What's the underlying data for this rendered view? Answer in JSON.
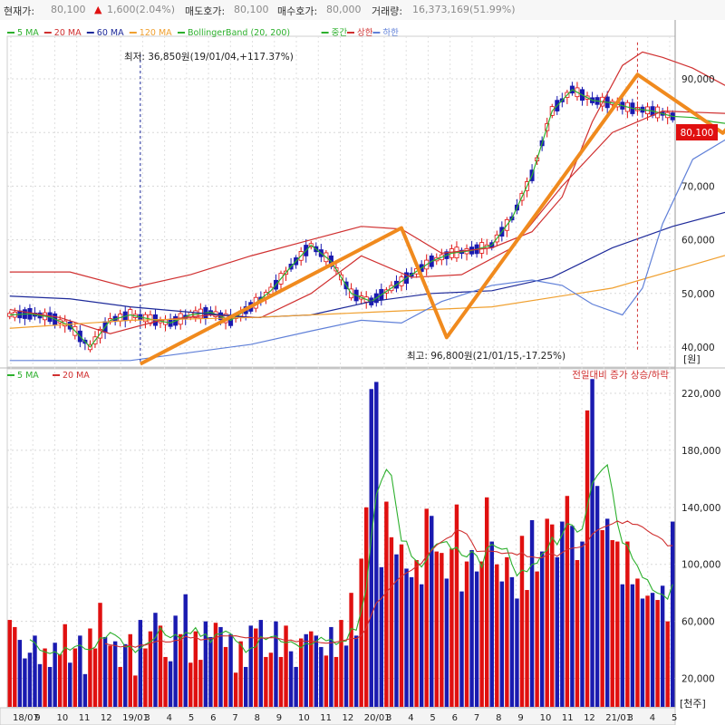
{
  "header": {
    "price_label": "현재가:",
    "price_value": "80,100",
    "change_arrow": "▲",
    "change_value": "1,600(2.04%)",
    "ask_label": "매도호가:",
    "ask_value": "80,100",
    "bid_label": "매수호가:",
    "bid_value": "80,000",
    "volume_label": "거래량:",
    "volume_value": "16,373,169(51.99%)"
  },
  "legend_top": [
    {
      "label": "5 MA",
      "color": "#2db02d"
    },
    {
      "label": "20 MA",
      "color": "#d03030"
    },
    {
      "label": "60 MA",
      "color": "#1e2a9a"
    },
    {
      "label": "120 MA",
      "color": "#f0a030"
    },
    {
      "label": "BollingerBand (20, 200)",
      "color": "#2db02d"
    },
    {
      "label": "중간",
      "color": "#2db02d"
    },
    {
      "label": "상한",
      "color": "#d03030"
    },
    {
      "label": "하한",
      "color": "#6080d8"
    }
  ],
  "legend_bottom": [
    {
      "label": "5 MA",
      "color": "#2db02d"
    },
    {
      "label": "20 MA",
      "color": "#d03030"
    }
  ],
  "annotations": {
    "low": "최저: 36,850원(19/01/04,+117.37%)",
    "high": "최고: 96,800원(21/01/15,-17.25%)",
    "volume_note": "전일대비 증가 상승/하락",
    "price_unit": "[원]",
    "volume_unit": "[천주]",
    "current_price_tag": "80,100"
  },
  "colors": {
    "up": "#e01010",
    "down": "#1a1ab0",
    "current_tag": "#e01010",
    "trendline": "#f08a1e"
  },
  "chart_data": [
    {
      "type": "line",
      "title": "",
      "ylabel": "[원]",
      "ylim": [
        38000,
        100000
      ],
      "y_ticks": [
        40000,
        50000,
        60000,
        70000,
        80000,
        90000
      ],
      "y_tick_labels": [
        "40,000",
        "50,000",
        "60,000",
        "70,000",
        "80,000",
        "90,000"
      ],
      "x_tick_labels": [
        "18/07",
        "9",
        "10",
        "11",
        "12",
        "19/01",
        "3",
        "4",
        "5",
        "6",
        "7",
        "8",
        "9",
        "10",
        "11",
        "12",
        "20/01",
        "3",
        "4",
        "5",
        "6",
        "7",
        "8",
        "9",
        "10",
        "11",
        "12",
        "21/01",
        "3",
        "4",
        "5"
      ],
      "current_price": 80100,
      "series": [
        {
          "name": "5 MA",
          "color": "#2db02d",
          "x": [
            0,
            4,
            8,
            12,
            16,
            20,
            24,
            28,
            32,
            36,
            40,
            44,
            48,
            52,
            56,
            60,
            64,
            68,
            72,
            76,
            80,
            84,
            88,
            92,
            96,
            100,
            104,
            108,
            112,
            116,
            120,
            124,
            128,
            132,
            136,
            140,
            144
          ],
          "y": [
            46000,
            46200,
            45600,
            44000,
            40000,
            45000,
            46000,
            45200,
            44500,
            46000,
            46500,
            45000,
            47500,
            50500,
            55000,
            59000,
            56000,
            50000,
            48500,
            51000,
            53500,
            56000,
            57500,
            58000,
            59000,
            64000,
            72000,
            84000,
            88000,
            86000,
            85500,
            84500,
            84000,
            83000,
            82800,
            82000,
            81500
          ]
        },
        {
          "name": "20 MA",
          "color": "#d03030",
          "x": [
            0,
            10,
            20,
            30,
            40,
            50,
            60,
            70,
            80,
            90,
            100,
            110,
            120,
            130,
            144
          ],
          "y": [
            47000,
            45500,
            42500,
            45000,
            46000,
            45500,
            50000,
            57000,
            53000,
            53500,
            58500,
            70000,
            80000,
            84000,
            83500
          ]
        },
        {
          "name": "60 MA",
          "color": "#1e2a9a",
          "x": [
            0,
            12,
            24,
            36,
            48,
            60,
            72,
            84,
            96,
            108,
            120,
            132,
            144
          ],
          "y": [
            49500,
            49000,
            47500,
            46500,
            45500,
            46000,
            48500,
            50000,
            50500,
            53000,
            58500,
            62500,
            65500
          ]
        },
        {
          "name": "120 MA",
          "color": "#f0a030",
          "x": [
            0,
            24,
            48,
            72,
            96,
            120,
            144
          ],
          "y": [
            43500,
            45000,
            45500,
            46500,
            47500,
            51000,
            57500
          ]
        },
        {
          "name": "상한",
          "color": "#d03030",
          "x": [
            0,
            12,
            24,
            36,
            48,
            60,
            70,
            78,
            86,
            96,
            104,
            110,
            116,
            122,
            126,
            130,
            136,
            144
          ],
          "y": [
            54000,
            54000,
            51000,
            53500,
            57000,
            60000,
            62500,
            62000,
            57500,
            58500,
            61500,
            68000,
            82000,
            92500,
            95000,
            94000,
            92000,
            88000
          ]
        },
        {
          "name": "하한",
          "color": "#6080d8",
          "x": [
            0,
            12,
            24,
            36,
            48,
            60,
            70,
            78,
            86,
            96,
            104,
            110,
            116,
            122,
            126,
            130,
            136,
            144
          ],
          "y": [
            37500,
            37500,
            37500,
            39000,
            40500,
            43000,
            45000,
            44500,
            48500,
            51500,
            52500,
            51500,
            48000,
            46000,
            51000,
            63000,
            75000,
            79500
          ]
        }
      ],
      "trendline_points": [
        {
          "x": 26,
          "y": 36850
        },
        {
          "x": 78,
          "y": 62200
        },
        {
          "x": 87,
          "y": 41800
        },
        {
          "x": 125,
          "y": 90800
        },
        {
          "x": 142,
          "y": 79900
        },
        {
          "x": 155,
          "y": 93500
        }
      ]
    },
    {
      "type": "bar",
      "title": "",
      "ylabel": "[천주]",
      "ylim": [
        0,
        230000
      ],
      "y_ticks": [
        20000,
        60000,
        100000,
        140000,
        180000,
        220000
      ],
      "y_tick_labels": [
        "20,000",
        "60,000",
        "100,000",
        "140,000",
        "180,000",
        "220,000"
      ],
      "values": [
        61000,
        56000,
        47000,
        34000,
        38000,
        50000,
        30000,
        41000,
        28000,
        45000,
        37000,
        58000,
        31000,
        41000,
        50000,
        23000,
        55000,
        41000,
        73000,
        49000,
        43000,
        46000,
        28000,
        44000,
        51000,
        22000,
        61000,
        41000,
        53000,
        66000,
        57000,
        35000,
        32000,
        64000,
        51000,
        79000,
        31000,
        53000,
        33000,
        60000,
        49000,
        59000,
        56000,
        42000,
        51000,
        24000,
        46000,
        28000,
        57000,
        55000,
        61000,
        35000,
        38000,
        60000,
        35000,
        57000,
        39000,
        28000,
        48000,
        51000,
        53000,
        50000,
        42000,
        36000,
        56000,
        35000,
        61000,
        43000,
        80000,
        50000,
        104000,
        140000,
        223000,
        228000,
        98000,
        144000,
        119000,
        107000,
        114000,
        97000,
        91000,
        103000,
        86000,
        139000,
        134000,
        109000,
        108000,
        90000,
        111000,
        142000,
        81000,
        102000,
        110000,
        95000,
        102000,
        147000,
        116000,
        100000,
        88000,
        105000,
        91000,
        76000,
        120000,
        82000,
        131000,
        95000,
        109000,
        132000,
        128000,
        105000,
        130000,
        148000,
        127000,
        103000,
        116000,
        208000,
        230000,
        155000,
        124000,
        132000,
        117000,
        116000,
        86000,
        116000,
        86000,
        90000,
        76000,
        78000,
        80000,
        75000,
        85000,
        60000,
        130000
      ],
      "ups": [
        1,
        1,
        0,
        0,
        0,
        0,
        0,
        1,
        0,
        0,
        1,
        1,
        0,
        1,
        0,
        0,
        1,
        1,
        1,
        0,
        1,
        0,
        1,
        0,
        1,
        1,
        0,
        1,
        1,
        0,
        1,
        1,
        0,
        0,
        1,
        0,
        1,
        1,
        1,
        0,
        0,
        1,
        0,
        1,
        0,
        1,
        1,
        0,
        0,
        1,
        0,
        1,
        1,
        0,
        1,
        1,
        0,
        0,
        1,
        0,
        1,
        0,
        0,
        1,
        0,
        1,
        1,
        0,
        1,
        0,
        1,
        1,
        0,
        0,
        0,
        1,
        1,
        0,
        1,
        0,
        0,
        1,
        0,
        1,
        0,
        1,
        1,
        0,
        1,
        1,
        0,
        1,
        0,
        0,
        1,
        1,
        0,
        1,
        0,
        1,
        0,
        0,
        1,
        1,
        0,
        1,
        0,
        1,
        1,
        0,
        0,
        1,
        0,
        1,
        0,
        1,
        0,
        0,
        1,
        0,
        1,
        1,
        0,
        1,
        0,
        1,
        0,
        1,
        0,
        1,
        0,
        1,
        0
      ],
      "series": [
        {
          "name": "5 MA",
          "color": "#2db02d"
        },
        {
          "name": "20 MA",
          "color": "#d03030"
        }
      ]
    }
  ]
}
